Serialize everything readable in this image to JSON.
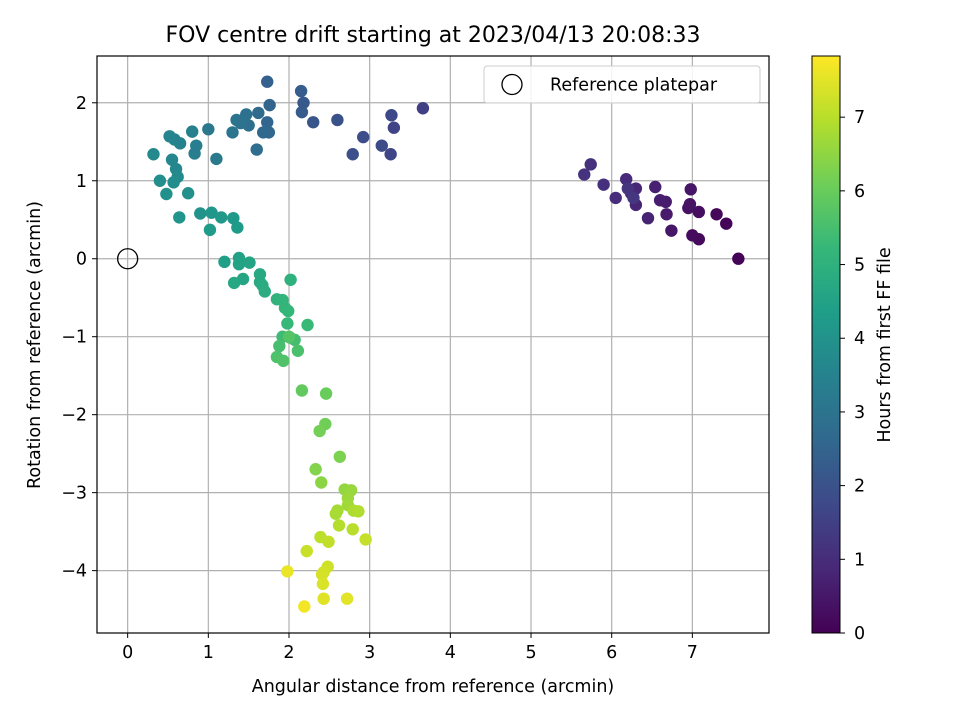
{
  "chart_data": {
    "type": "scatter",
    "title": "FOV centre drift starting at 2023/04/13 20:08:33",
    "xlabel": "Angular distance from reference (arcmin)",
    "ylabel": "Rotation from reference (arcmin)",
    "xlim": [
      -0.38,
      7.95
    ],
    "ylim": [
      -4.8,
      2.6
    ],
    "xticks": [
      0,
      1,
      2,
      3,
      4,
      5,
      6,
      7
    ],
    "yticks": [
      2,
      1,
      0,
      -1,
      -2,
      -3,
      -4
    ],
    "grid": true,
    "legend": {
      "position": "top-right",
      "entries": [
        "Reference platepar"
      ]
    },
    "reference_point": {
      "x": 0,
      "y": 0,
      "label": "Reference platepar"
    },
    "colorbar": {
      "label": "Hours from first FF file",
      "range": [
        0,
        7.83
      ],
      "ticks": [
        0,
        1,
        2,
        3,
        4,
        5,
        6,
        7
      ],
      "colormap": "viridis",
      "colors": [
        "#440154",
        "#482878",
        "#3e4989",
        "#31688e",
        "#26828e",
        "#1f9e89",
        "#35b779",
        "#6ece58",
        "#b5de2b",
        "#fde725"
      ]
    },
    "points": [
      {
        "x": 7.57,
        "y": 0.0,
        "t": 0.05
      },
      {
        "x": 7.42,
        "y": 0.45,
        "t": 0.1
      },
      {
        "x": 7.3,
        "y": 0.57,
        "t": 0.15
      },
      {
        "x": 7.08,
        "y": 0.25,
        "t": 0.2
      },
      {
        "x": 7.0,
        "y": 0.3,
        "t": 0.25
      },
      {
        "x": 7.08,
        "y": 0.6,
        "t": 0.3
      },
      {
        "x": 6.95,
        "y": 0.65,
        "t": 0.35
      },
      {
        "x": 6.97,
        "y": 0.7,
        "t": 0.4
      },
      {
        "x": 6.98,
        "y": 0.89,
        "t": 0.45
      },
      {
        "x": 6.74,
        "y": 0.36,
        "t": 0.5
      },
      {
        "x": 6.68,
        "y": 0.57,
        "t": 0.55
      },
      {
        "x": 6.67,
        "y": 0.73,
        "t": 0.6
      },
      {
        "x": 6.6,
        "y": 0.75,
        "t": 0.65
      },
      {
        "x": 6.54,
        "y": 0.92,
        "t": 0.7
      },
      {
        "x": 6.45,
        "y": 0.52,
        "t": 0.75
      },
      {
        "x": 6.3,
        "y": 0.69,
        "t": 0.8
      },
      {
        "x": 6.3,
        "y": 0.9,
        "t": 0.85
      },
      {
        "x": 6.24,
        "y": 0.84,
        "t": 0.9
      },
      {
        "x": 6.18,
        "y": 1.02,
        "t": 0.95
      },
      {
        "x": 6.05,
        "y": 0.78,
        "t": 1.0
      },
      {
        "x": 5.9,
        "y": 0.95,
        "t": 1.05
      },
      {
        "x": 5.74,
        "y": 1.21,
        "t": 1.1
      },
      {
        "x": 5.66,
        "y": 1.08,
        "t": 1.15
      },
      {
        "x": 6.2,
        "y": 0.9,
        "t": 1.2
      },
      {
        "x": 6.27,
        "y": 0.78,
        "t": 1.25
      },
      {
        "x": 3.66,
        "y": 1.93,
        "t": 1.5
      },
      {
        "x": 3.3,
        "y": 1.68,
        "t": 1.6
      },
      {
        "x": 3.26,
        "y": 1.34,
        "t": 1.65
      },
      {
        "x": 3.27,
        "y": 1.84,
        "t": 1.7
      },
      {
        "x": 3.15,
        "y": 1.45,
        "t": 1.8
      },
      {
        "x": 2.92,
        "y": 1.56,
        "t": 1.85
      },
      {
        "x": 2.79,
        "y": 1.34,
        "t": 1.9
      },
      {
        "x": 2.6,
        "y": 1.78,
        "t": 2.0
      },
      {
        "x": 2.3,
        "y": 1.75,
        "t": 2.1
      },
      {
        "x": 2.18,
        "y": 2.0,
        "t": 2.2
      },
      {
        "x": 2.16,
        "y": 1.88,
        "t": 2.25
      },
      {
        "x": 2.15,
        "y": 2.15,
        "t": 2.3
      },
      {
        "x": 1.73,
        "y": 2.27,
        "t": 2.4
      },
      {
        "x": 1.76,
        "y": 1.97,
        "t": 2.5
      },
      {
        "x": 1.73,
        "y": 1.75,
        "t": 2.55
      },
      {
        "x": 1.75,
        "y": 1.62,
        "t": 2.6
      },
      {
        "x": 1.68,
        "y": 1.62,
        "t": 2.65
      },
      {
        "x": 1.62,
        "y": 1.87,
        "t": 2.7
      },
      {
        "x": 1.6,
        "y": 1.4,
        "t": 2.8
      },
      {
        "x": 1.5,
        "y": 1.71,
        "t": 2.85
      },
      {
        "x": 1.47,
        "y": 1.85,
        "t": 2.9
      },
      {
        "x": 1.4,
        "y": 1.74,
        "t": 2.95
      },
      {
        "x": 1.35,
        "y": 1.78,
        "t": 3.0
      },
      {
        "x": 1.3,
        "y": 1.62,
        "t": 3.05
      },
      {
        "x": 1.0,
        "y": 1.66,
        "t": 3.1
      },
      {
        "x": 1.1,
        "y": 1.28,
        "t": 3.2
      },
      {
        "x": 0.83,
        "y": 1.35,
        "t": 3.3
      },
      {
        "x": 0.85,
        "y": 1.45,
        "t": 3.35
      },
      {
        "x": 0.8,
        "y": 1.63,
        "t": 3.4
      },
      {
        "x": 0.65,
        "y": 1.48,
        "t": 3.45
      },
      {
        "x": 0.58,
        "y": 1.53,
        "t": 3.5
      },
      {
        "x": 0.52,
        "y": 1.57,
        "t": 3.55
      },
      {
        "x": 0.55,
        "y": 1.27,
        "t": 3.6
      },
      {
        "x": 0.6,
        "y": 1.15,
        "t": 3.65
      },
      {
        "x": 0.32,
        "y": 1.34,
        "t": 3.7
      },
      {
        "x": 0.62,
        "y": 1.05,
        "t": 3.75
      },
      {
        "x": 0.57,
        "y": 0.98,
        "t": 3.8
      },
      {
        "x": 0.4,
        "y": 1.0,
        "t": 3.85
      },
      {
        "x": 0.75,
        "y": 0.84,
        "t": 3.9
      },
      {
        "x": 0.48,
        "y": 0.83,
        "t": 3.95
      },
      {
        "x": 0.9,
        "y": 0.58,
        "t": 4.0
      },
      {
        "x": 0.64,
        "y": 0.53,
        "t": 4.05
      },
      {
        "x": 1.04,
        "y": 0.59,
        "t": 4.1
      },
      {
        "x": 1.16,
        "y": 0.53,
        "t": 4.15
      },
      {
        "x": 1.31,
        "y": 0.52,
        "t": 4.2
      },
      {
        "x": 1.02,
        "y": 0.37,
        "t": 4.25
      },
      {
        "x": 1.36,
        "y": 0.4,
        "t": 4.3
      },
      {
        "x": 1.2,
        "y": -0.04,
        "t": 4.4
      },
      {
        "x": 1.38,
        "y": 0.01,
        "t": 4.45
      },
      {
        "x": 1.38,
        "y": -0.07,
        "t": 4.5
      },
      {
        "x": 1.51,
        "y": -0.05,
        "t": 4.55
      },
      {
        "x": 1.43,
        "y": -0.26,
        "t": 4.6
      },
      {
        "x": 1.32,
        "y": -0.31,
        "t": 4.65
      },
      {
        "x": 1.64,
        "y": -0.2,
        "t": 4.7
      },
      {
        "x": 1.64,
        "y": -0.3,
        "t": 4.75
      },
      {
        "x": 1.67,
        "y": -0.34,
        "t": 4.8
      },
      {
        "x": 1.7,
        "y": -0.42,
        "t": 4.85
      },
      {
        "x": 2.02,
        "y": -0.27,
        "t": 5.0
      },
      {
        "x": 1.85,
        "y": -0.52,
        "t": 5.05
      },
      {
        "x": 1.92,
        "y": -0.53,
        "t": 5.1
      },
      {
        "x": 1.95,
        "y": -0.63,
        "t": 5.15
      },
      {
        "x": 1.99,
        "y": -0.67,
        "t": 5.2
      },
      {
        "x": 1.98,
        "y": -0.83,
        "t": 5.25
      },
      {
        "x": 2.23,
        "y": -0.85,
        "t": 5.3
      },
      {
        "x": 1.92,
        "y": -1.0,
        "t": 5.35
      },
      {
        "x": 2.01,
        "y": -1.01,
        "t": 5.4
      },
      {
        "x": 2.07,
        "y": -1.04,
        "t": 5.45
      },
      {
        "x": 1.88,
        "y": -1.12,
        "t": 5.5
      },
      {
        "x": 2.11,
        "y": -1.18,
        "t": 5.55
      },
      {
        "x": 1.85,
        "y": -1.26,
        "t": 5.6
      },
      {
        "x": 1.93,
        "y": -1.31,
        "t": 5.65
      },
      {
        "x": 2.0,
        "y": -1.0,
        "t": 5.7
      },
      {
        "x": 2.16,
        "y": -1.69,
        "t": 5.9
      },
      {
        "x": 2.46,
        "y": -1.73,
        "t": 6.0
      },
      {
        "x": 2.45,
        "y": -2.12,
        "t": 6.1
      },
      {
        "x": 2.38,
        "y": -2.21,
        "t": 6.15
      },
      {
        "x": 2.63,
        "y": -2.54,
        "t": 6.25
      },
      {
        "x": 2.33,
        "y": -2.7,
        "t": 6.35
      },
      {
        "x": 2.4,
        "y": -2.87,
        "t": 6.45
      },
      {
        "x": 2.69,
        "y": -2.96,
        "t": 6.55
      },
      {
        "x": 2.77,
        "y": -2.97,
        "t": 6.6
      },
      {
        "x": 2.73,
        "y": -3.07,
        "t": 6.65
      },
      {
        "x": 2.73,
        "y": -3.16,
        "t": 6.7
      },
      {
        "x": 2.6,
        "y": -3.23,
        "t": 6.75
      },
      {
        "x": 2.58,
        "y": -3.27,
        "t": 6.8
      },
      {
        "x": 2.8,
        "y": -3.23,
        "t": 6.85
      },
      {
        "x": 2.86,
        "y": -3.24,
        "t": 6.9
      },
      {
        "x": 2.62,
        "y": -3.42,
        "t": 6.95
      },
      {
        "x": 2.79,
        "y": -3.47,
        "t": 7.0
      },
      {
        "x": 2.39,
        "y": -3.57,
        "t": 7.05
      },
      {
        "x": 2.49,
        "y": -3.63,
        "t": 7.1
      },
      {
        "x": 2.95,
        "y": -3.6,
        "t": 7.15
      },
      {
        "x": 2.22,
        "y": -3.75,
        "t": 7.2
      },
      {
        "x": 2.48,
        "y": -3.95,
        "t": 7.25
      },
      {
        "x": 2.43,
        "y": -4.02,
        "t": 7.3
      },
      {
        "x": 2.41,
        "y": -4.05,
        "t": 7.35
      },
      {
        "x": 2.42,
        "y": -4.17,
        "t": 7.4
      },
      {
        "x": 2.43,
        "y": -4.36,
        "t": 7.45
      },
      {
        "x": 2.72,
        "y": -4.36,
        "t": 7.5
      },
      {
        "x": 1.98,
        "y": -4.01,
        "t": 7.6
      },
      {
        "x": 2.19,
        "y": -4.46,
        "t": 7.7
      }
    ]
  }
}
